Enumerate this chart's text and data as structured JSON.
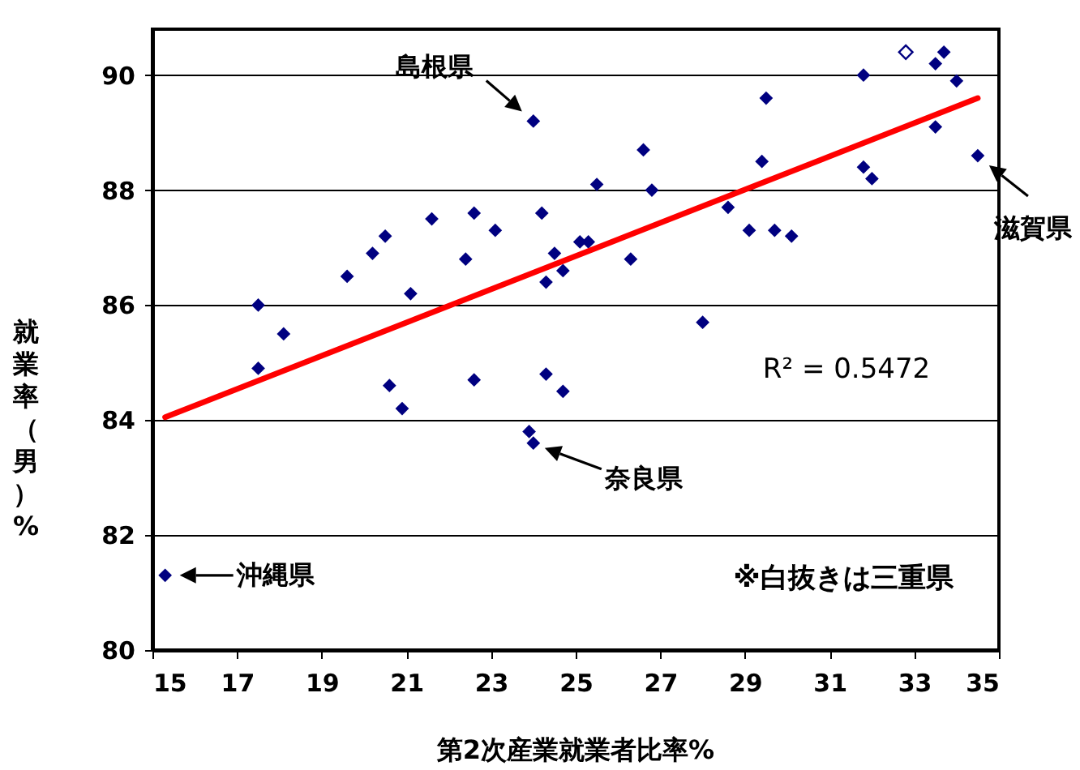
{
  "chart_data": {
    "type": "scatter",
    "xlabel": "第2次産業就業者比率%",
    "ylabel": "就業率（男）%",
    "xlim": [
      15,
      35
    ],
    "xticks": [
      15,
      17,
      19,
      21,
      23,
      25,
      27,
      29,
      31,
      33,
      35
    ],
    "ylim": [
      80,
      90.8
    ],
    "yticks": [
      80,
      82,
      84,
      86,
      88,
      90
    ],
    "grid": "y",
    "series": [
      {
        "marker": "diamond",
        "color": "#000080",
        "x": [
          15.3,
          17.5,
          17.5,
          18.1,
          19.6,
          20.2,
          20.5,
          20.6,
          20.9,
          21.1,
          21.6,
          22.4,
          22.6,
          22.6,
          23.1,
          24.0,
          24.2,
          24.3,
          24.3,
          24.5,
          24.7,
          24.7,
          25.1,
          25.3,
          23.9,
          24.0,
          25.5,
          26.3,
          26.6,
          26.8,
          28.0,
          28.6,
          29.1,
          29.4,
          29.5,
          29.7,
          30.1,
          31.8,
          31.8,
          32.0,
          33.5,
          33.5,
          33.7,
          34.0,
          34.5
        ],
        "values": [
          81.3,
          86.0,
          84.9,
          85.5,
          86.5,
          86.9,
          87.2,
          84.6,
          84.2,
          86.2,
          87.5,
          86.8,
          87.6,
          84.7,
          87.3,
          89.2,
          87.6,
          86.4,
          84.8,
          86.9,
          86.6,
          84.5,
          87.1,
          87.1,
          83.8,
          83.6,
          88.1,
          86.8,
          88.7,
          88.0,
          85.7,
          87.7,
          87.3,
          88.5,
          89.6,
          87.3,
          87.2,
          90.0,
          88.4,
          88.2,
          90.2,
          89.1,
          90.4,
          89.9,
          88.6
        ]
      },
      {
        "marker": "diamond",
        "color": "#000080",
        "x": [
          32.8
        ],
        "values": [
          90.4
        ]
      },
      {
        "type": "line",
        "color": "#ff0000",
        "x": [
          15.3,
          34.5
        ],
        "values": [
          84.05,
          89.6
        ]
      }
    ],
    "annotations": [
      {
        "text": "島根県",
        "x": 24.0,
        "y": 89.2
      },
      {
        "text": "奈良県",
        "x": 24.0,
        "y": 83.6
      },
      {
        "text": "沖縄県",
        "x": 15.3,
        "y": 81.3
      },
      {
        "text": "滋賀県",
        "x": 34.5,
        "y": 88.6
      },
      "R² = 0.5472",
      "※白抜きは三重県"
    ]
  }
}
